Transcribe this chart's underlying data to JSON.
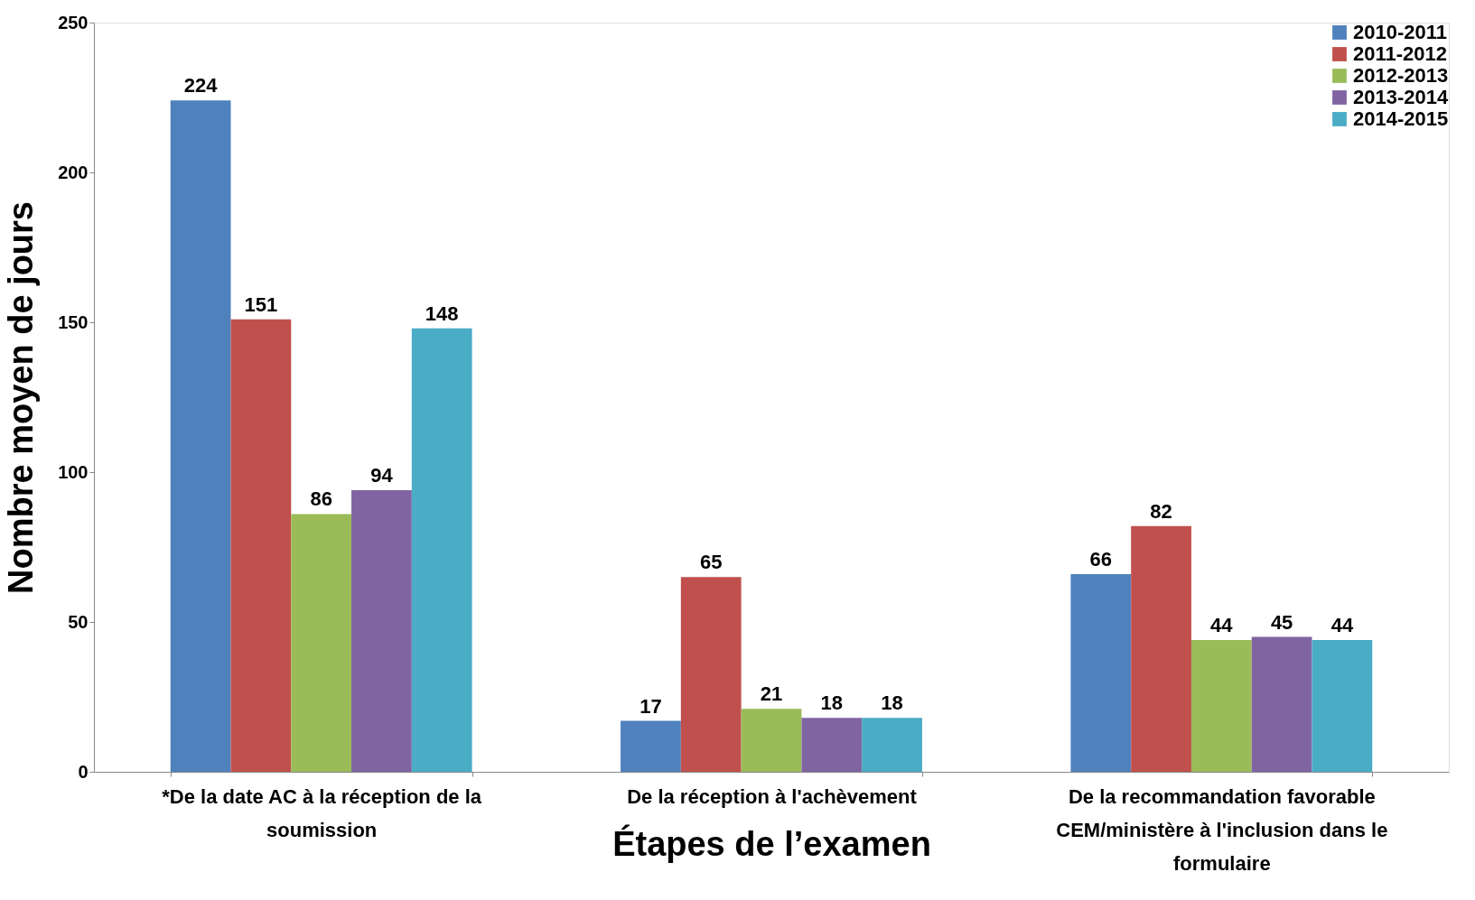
{
  "chart_data": {
    "type": "bar",
    "xlabel": "Étapes de l’examen",
    "ylabel": "Nombre moyen de jours",
    "categories": [
      "*De la date AC à la réception de la soumission",
      "De la réception à l'achèvement",
      "De la recommandation favorable CEM/ministère à l'inclusion dans le formulaire"
    ],
    "series": [
      {
        "name": "2010-2011",
        "color": "#4f81bd",
        "values": [
          224,
          17,
          66
        ]
      },
      {
        "name": "2011-2012",
        "color": "#c0504d",
        "values": [
          151,
          65,
          82
        ]
      },
      {
        "name": "2012-2013",
        "color": "#9bbb59",
        "values": [
          86,
          21,
          44
        ]
      },
      {
        "name": "2013-2014",
        "color": "#8064a2",
        "values": [
          94,
          18,
          45
        ]
      },
      {
        "name": "2014-2015",
        "color": "#4bacc6",
        "values": [
          148,
          18,
          44
        ]
      }
    ],
    "ylim": [
      0,
      250
    ],
    "yticks": [
      0,
      50,
      100,
      150,
      200,
      250
    ],
    "grid": false,
    "legend": "top right",
    "data_labels": true
  }
}
